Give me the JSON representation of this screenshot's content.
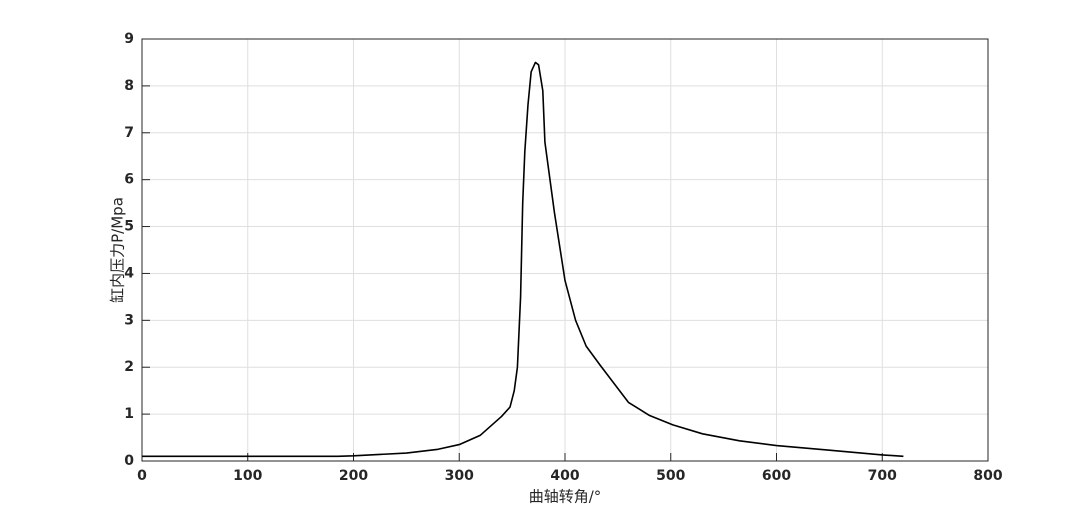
{
  "chart_data": {
    "type": "line",
    "x_label": "曲轴转角/°",
    "y_label": "缸内压力P/Mpa",
    "x": [
      0,
      100,
      185,
      200,
      250,
      280,
      300,
      320,
      340,
      348,
      352,
      355,
      358,
      360,
      362,
      365,
      368,
      372,
      375,
      379,
      381,
      390,
      400,
      410,
      420,
      433,
      460,
      480,
      502,
      530,
      565,
      600,
      650,
      700,
      720
    ],
    "series": [
      {
        "name": "P",
        "color": "#000000",
        "values": [
          0.1,
          0.1,
          0.1,
          0.11,
          0.17,
          0.25,
          0.35,
          0.55,
          0.95,
          1.15,
          1.5,
          2.0,
          3.5,
          5.5,
          6.6,
          7.6,
          8.3,
          8.5,
          8.45,
          7.9,
          6.8,
          5.3,
          3.85,
          3.0,
          2.45,
          2.05,
          1.25,
          0.97,
          0.77,
          0.58,
          0.43,
          0.33,
          0.23,
          0.13,
          0.1
        ]
      }
    ],
    "xlim": [
      0,
      800
    ],
    "xticks": [
      0,
      100,
      200,
      300,
      400,
      500,
      600,
      700,
      800
    ],
    "ylim": [
      0,
      9
    ],
    "yticks": [
      0,
      1,
      2,
      3,
      4,
      5,
      6,
      7,
      8,
      9
    ],
    "grid": true
  }
}
